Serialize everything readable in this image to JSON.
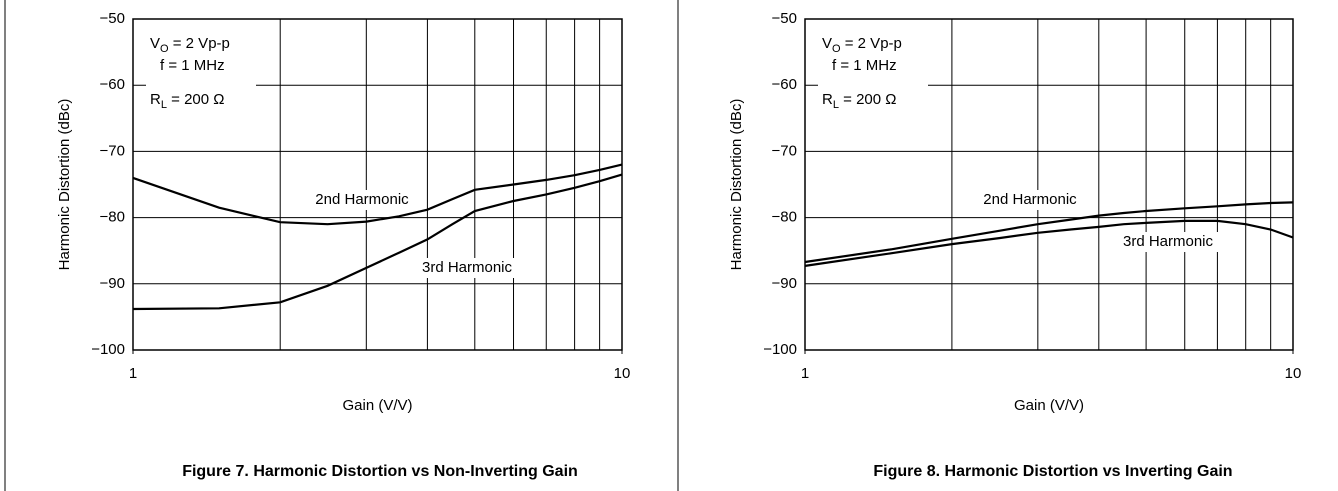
{
  "chart_data": [
    {
      "type": "line",
      "title": "Figure 7. Harmonic Distortion vs Non-Inverting Gain",
      "xlabel": "Gain (V/V)",
      "ylabel": "Harmonic Distortion (dBc)",
      "xscale": "log",
      "xlim": [
        1,
        10
      ],
      "xticks": [
        1,
        10
      ],
      "xgrid": [
        2,
        3,
        4,
        5,
        6,
        7,
        8,
        9
      ],
      "ylim": [
        -100,
        -50
      ],
      "yticks": [
        {
          "value": -100,
          "label": "−100"
        },
        {
          "value": -90,
          "label": "−90"
        },
        {
          "value": -80,
          "label": "−80"
        },
        {
          "value": -70,
          "label": "−70"
        },
        {
          "value": -60,
          "label": "−60"
        },
        {
          "value": -50,
          "label": "−50"
        }
      ],
      "grid": true,
      "annotations": [
        {
          "main": "V",
          "sub": "O",
          "tail": " = 2 Vp-p"
        },
        {
          "main": "f = 1 MHz"
        },
        {
          "main": "R",
          "sub": "L",
          "tail": " = 200 Ω"
        }
      ],
      "x": [
        1,
        1.5,
        2,
        2.5,
        3,
        3.5,
        4,
        4.5,
        5,
        6,
        7,
        8,
        9,
        10
      ],
      "series": [
        {
          "name": "2nd Harmonic",
          "color": "#000000",
          "values": [
            -74,
            -78.5,
            -80.7,
            -81,
            -80.6,
            -79.8,
            -78.8,
            -77.2,
            -75.8,
            -75,
            -74.3,
            -73.6,
            -72.8,
            -72
          ]
        },
        {
          "name": "3rd Harmonic",
          "color": "#000000",
          "values": [
            -93.8,
            -93.7,
            -92.8,
            -90.3,
            -87.6,
            -85.3,
            -83.3,
            -81,
            -79,
            -77.5,
            -76.5,
            -75.5,
            -74.5,
            -73.5
          ]
        }
      ]
    },
    {
      "type": "line",
      "title": "Figure 8. Harmonic Distortion vs Inverting Gain",
      "xlabel": "Gain (V/V)",
      "ylabel": "Harmonic Distortion (dBc)",
      "xscale": "log",
      "xlim": [
        1,
        10
      ],
      "xticks": [
        1,
        10
      ],
      "xgrid": [
        2,
        3,
        4,
        5,
        6,
        7,
        8,
        9
      ],
      "ylim": [
        -100,
        -50
      ],
      "yticks": [
        {
          "value": -100,
          "label": "−100"
        },
        {
          "value": -90,
          "label": "−90"
        },
        {
          "value": -80,
          "label": "−80"
        },
        {
          "value": -70,
          "label": "−70"
        },
        {
          "value": -60,
          "label": "−60"
        },
        {
          "value": -50,
          "label": "−50"
        }
      ],
      "grid": true,
      "annotations": [
        {
          "main": "V",
          "sub": "O",
          "tail": " = 2 Vp-p"
        },
        {
          "main": "f = 1 MHz"
        },
        {
          "main": "R",
          "sub": "L",
          "tail": " = 200 Ω"
        }
      ],
      "x": [
        1,
        1.5,
        2,
        2.5,
        3,
        3.5,
        4,
        4.5,
        5,
        6,
        7,
        8,
        9,
        10
      ],
      "series": [
        {
          "name": "2nd Harmonic",
          "color": "#000000",
          "values": [
            -86.7,
            -84.8,
            -83.2,
            -82,
            -81,
            -80.3,
            -79.7,
            -79.3,
            -79,
            -78.6,
            -78.3,
            -78,
            -77.8,
            -77.7
          ]
        },
        {
          "name": "3rd Harmonic",
          "color": "#000000",
          "values": [
            -87.3,
            -85.4,
            -84,
            -83.1,
            -82.3,
            -81.8,
            -81.4,
            -81,
            -80.8,
            -80.5,
            -80.5,
            -81,
            -81.8,
            -83
          ]
        }
      ]
    }
  ]
}
